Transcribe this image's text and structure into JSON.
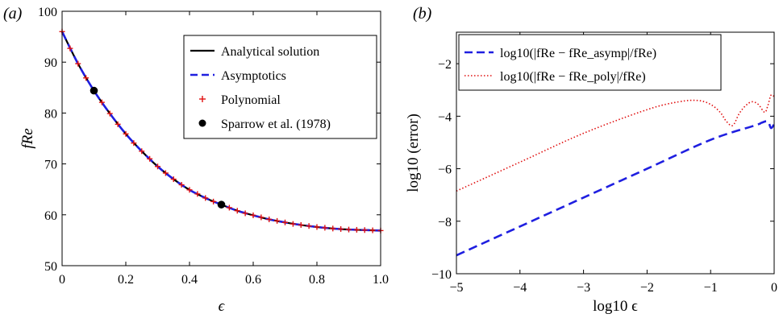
{
  "chart_data": [
    {
      "panel": "(a)",
      "type": "line",
      "xlabel": "ϵ",
      "ylabel": "fRe",
      "xlim": [
        0,
        1
      ],
      "ylim": [
        50,
        100
      ],
      "xticks": [
        0,
        0.2,
        0.4,
        0.6,
        0.8,
        1.0
      ],
      "xtick_labels": [
        "0",
        "0.2",
        "0.4",
        "0.6",
        "0.8",
        "1.0"
      ],
      "yticks": [
        50,
        60,
        70,
        80,
        90,
        100
      ],
      "ytick_labels": [
        "50",
        "60",
        "70",
        "80",
        "90",
        "100"
      ],
      "legend_position": "top-right",
      "series": [
        {
          "name": "Analytical solution",
          "style": "solid",
          "color": "#000000",
          "x": [
            0,
            0.05,
            0.1,
            0.15,
            0.2,
            0.25,
            0.3,
            0.35,
            0.4,
            0.45,
            0.5,
            0.55,
            0.6,
            0.65,
            0.7,
            0.75,
            0.8,
            0.85,
            0.9,
            0.95,
            1.0
          ],
          "y": [
            96.0,
            89.7,
            84.4,
            79.9,
            75.9,
            72.5,
            69.5,
            67.0,
            64.9,
            63.3,
            62.0,
            60.8,
            59.9,
            59.1,
            58.5,
            58.0,
            57.6,
            57.3,
            57.1,
            57.0,
            56.9
          ]
        },
        {
          "name": "Asymptotics",
          "style": "dashed",
          "color": "#1f1fe0",
          "x": [
            0,
            0.05,
            0.1,
            0.15,
            0.2,
            0.25,
            0.3,
            0.35,
            0.4,
            0.45,
            0.5,
            0.55,
            0.6,
            0.65,
            0.7,
            0.75,
            0.8,
            0.85,
            0.9,
            0.95,
            1.0
          ],
          "y": [
            96.0,
            89.7,
            84.4,
            79.9,
            75.9,
            72.5,
            69.5,
            67.0,
            64.9,
            63.3,
            62.0,
            60.8,
            59.9,
            59.1,
            58.5,
            58.0,
            57.6,
            57.3,
            57.1,
            57.0,
            56.9
          ]
        },
        {
          "name": "Polynomial",
          "style": "plus-markers",
          "color": "#e01010",
          "x": [
            0,
            0.025,
            0.05,
            0.075,
            0.1,
            0.125,
            0.15,
            0.175,
            0.2,
            0.225,
            0.25,
            0.275,
            0.3,
            0.325,
            0.35,
            0.375,
            0.4,
            0.425,
            0.45,
            0.475,
            0.5,
            0.525,
            0.55,
            0.575,
            0.6,
            0.625,
            0.65,
            0.675,
            0.7,
            0.725,
            0.75,
            0.775,
            0.8,
            0.825,
            0.85,
            0.875,
            0.9,
            0.925,
            0.95,
            0.975,
            1.0
          ],
          "y": [
            96.0,
            92.7,
            89.7,
            86.9,
            84.4,
            82.1,
            79.9,
            77.8,
            75.9,
            74.1,
            72.5,
            71.0,
            69.5,
            68.2,
            67.0,
            65.9,
            64.9,
            64.1,
            63.3,
            62.6,
            62.0,
            61.4,
            60.8,
            60.3,
            59.9,
            59.5,
            59.1,
            58.8,
            58.5,
            58.2,
            58.0,
            57.8,
            57.6,
            57.45,
            57.3,
            57.2,
            57.1,
            57.05,
            57.0,
            56.95,
            56.9
          ]
        },
        {
          "name": "Sparrow et al. (1978)",
          "style": "dot-markers",
          "color": "#000000",
          "x": [
            0.1,
            0.5
          ],
          "y": [
            84.4,
            62.0
          ]
        }
      ]
    },
    {
      "panel": "(b)",
      "type": "line",
      "xlabel": "log10 ϵ",
      "ylabel": "log10 (error)",
      "xlim": [
        -5,
        0
      ],
      "ylim": [
        -10,
        -0.8
      ],
      "xticks": [
        -5,
        -4,
        -3,
        -2,
        -1,
        0
      ],
      "xtick_labels": [
        "−5",
        "−4",
        "−3",
        "−2",
        "−1",
        "0"
      ],
      "yticks": [
        -10,
        -8,
        -6,
        -4,
        -2
      ],
      "ytick_labels": [
        "−10",
        "−8",
        "−6",
        "−4",
        "−2"
      ],
      "legend_position": "top",
      "series": [
        {
          "name": "log10(|fRe − fRe_asymp|/fRe)",
          "style": "dashed",
          "color": "#1f1fe0",
          "x": [
            -5,
            -4,
            -3,
            -2,
            -1,
            -0.3,
            -0.2,
            -0.1,
            -0.05,
            0
          ],
          "y": [
            -9.3,
            -8.2,
            -7.1,
            -6.0,
            -4.9,
            -4.35,
            -4.25,
            -4.2,
            -4.45,
            -4.3
          ]
        },
        {
          "name": "log10(|fRe − fRe_poly|/fRe)",
          "style": "dotted",
          "color": "#e01010",
          "x": [
            -5,
            -4,
            -3,
            -2,
            -1.5,
            -1.2,
            -1.0,
            -0.85,
            -0.75,
            -0.65,
            -0.55,
            -0.45,
            -0.35,
            -0.25,
            -0.15,
            -0.1,
            -0.05,
            0
          ],
          "y": [
            -6.85,
            -5.75,
            -4.65,
            -3.75,
            -3.45,
            -3.4,
            -3.55,
            -3.85,
            -4.2,
            -4.35,
            -3.9,
            -3.6,
            -3.45,
            -3.55,
            -3.85,
            -3.6,
            -3.2,
            -3.25
          ]
        }
      ]
    }
  ]
}
